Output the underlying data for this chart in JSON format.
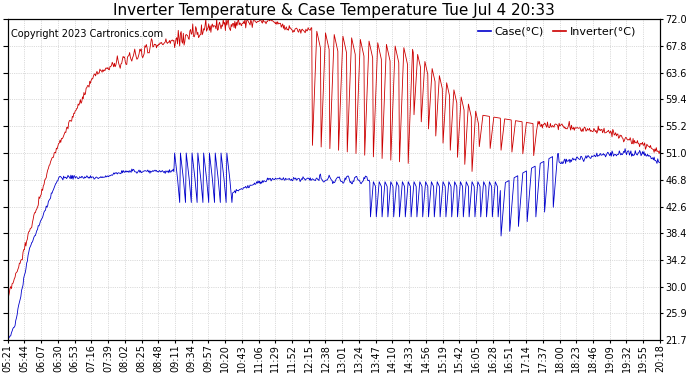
{
  "title": "Inverter Temperature & Case Temperature Tue Jul 4 20:33",
  "copyright": "Copyright 2023 Cartronics.com",
  "legend_case": "Case(°C)",
  "legend_inverter": "Inverter(°C)",
  "ylabel_right_ticks": [
    21.7,
    25.9,
    30.0,
    34.2,
    38.4,
    42.6,
    46.8,
    51.0,
    55.2,
    59.4,
    63.6,
    67.8,
    72.0
  ],
  "ymin": 21.7,
  "ymax": 72.0,
  "bg_color": "#ffffff",
  "plot_bg_color": "#ffffff",
  "grid_color": "#bbbbbb",
  "case_color": "#0000cc",
  "inverter_color": "#cc0000",
  "title_fontsize": 11,
  "copyright_fontsize": 7,
  "tick_fontsize": 7,
  "legend_fontsize": 8,
  "xtick_labels": [
    "05:21",
    "05:44",
    "06:07",
    "06:30",
    "06:53",
    "07:16",
    "07:39",
    "08:02",
    "08:25",
    "08:48",
    "09:11",
    "09:34",
    "09:57",
    "10:20",
    "10:43",
    "11:06",
    "11:29",
    "11:52",
    "12:15",
    "12:38",
    "13:01",
    "13:24",
    "13:47",
    "14:10",
    "14:33",
    "14:56",
    "15:19",
    "15:42",
    "16:05",
    "16:28",
    "16:51",
    "17:14",
    "17:37",
    "18:00",
    "18:23",
    "18:46",
    "19:09",
    "19:32",
    "19:55",
    "20:18"
  ]
}
